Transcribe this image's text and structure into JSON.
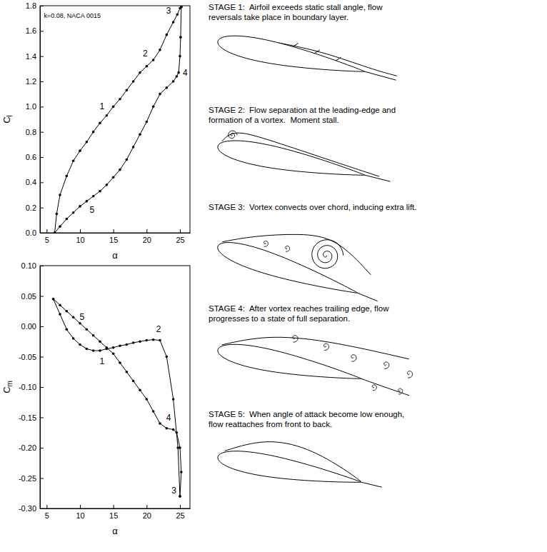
{
  "chart_data": [
    {
      "type": "line",
      "xlabel": "α",
      "ylabel": "Cl",
      "xlim": [
        4,
        26.5
      ],
      "ylim": [
        0,
        1.8
      ],
      "xticks": [
        5,
        10,
        15,
        20,
        25
      ],
      "yticks": [
        {
          "value": 0,
          "label": "0.0"
        },
        0.2,
        0.4,
        0.6,
        0.8,
        {
          "value": 1,
          "label": "1.0"
        },
        1.2,
        1.4,
        1.6,
        1.8
      ],
      "marker": "circle",
      "color": "#000000",
      "annotations": [
        {
          "text": "k=0.08, NACA 0015",
          "x": 4.6,
          "y": 1.72
        },
        {
          "text": "1",
          "x": 13.3,
          "y": 1.0
        },
        {
          "text": "2",
          "x": 19.8,
          "y": 1.42
        },
        {
          "text": "3",
          "x": 23.3,
          "y": 1.76
        },
        {
          "text": "4",
          "x": 25.8,
          "y": 1.27
        },
        {
          "text": "5",
          "x": 11.8,
          "y": 0.18
        }
      ],
      "series": [
        {
          "x": [
            6.2,
            6.5,
            7,
            8,
            9,
            10,
            11,
            12,
            13,
            14,
            15,
            16,
            17,
            18,
            19,
            20,
            21,
            22,
            23,
            24,
            24.6,
            25,
            25.2
          ],
          "values": [
            0.0,
            0.15,
            0.3,
            0.45,
            0.57,
            0.65,
            0.72,
            0.8,
            0.87,
            0.93,
            1.0,
            1.06,
            1.13,
            1.2,
            1.27,
            1.32,
            1.37,
            1.45,
            1.57,
            1.67,
            1.73,
            1.78,
            1.79
          ]
        },
        {
          "x": [
            25.2,
            25.1,
            25,
            24.8,
            24.5,
            24,
            23,
            22,
            21,
            20,
            19,
            18,
            17,
            16,
            15,
            14,
            13,
            12,
            11,
            10,
            9,
            8,
            7,
            6.2
          ],
          "values": [
            1.79,
            1.55,
            1.4,
            1.27,
            1.24,
            1.2,
            1.15,
            1.1,
            1.0,
            0.88,
            0.78,
            0.68,
            0.58,
            0.5,
            0.44,
            0.38,
            0.33,
            0.29,
            0.25,
            0.21,
            0.16,
            0.11,
            0.05,
            0.0
          ]
        }
      ]
    },
    {
      "type": "line",
      "xlabel": "α",
      "ylabel": "Cm",
      "xlim": [
        4,
        26.5
      ],
      "ylim": [
        -0.3,
        0.1
      ],
      "xticks": [
        5,
        10,
        15,
        20,
        25
      ],
      "yticks": [
        {
          "value": -0.3,
          "label": "-0.30"
        },
        -0.25,
        {
          "value": -0.2,
          "label": "-0.20"
        },
        -0.15,
        {
          "value": -0.1,
          "label": "-0.10"
        },
        -0.05,
        {
          "value": 0,
          "label": "0.00"
        },
        0.05,
        {
          "value": 0.1,
          "label": "0.10"
        }
      ],
      "marker": "circle",
      "color": "#000000",
      "annotations": [
        {
          "text": "1",
          "x": 13.3,
          "y": -0.058
        },
        {
          "text": "2",
          "x": 21.8,
          "y": -0.005
        },
        {
          "text": "3",
          "x": 24.1,
          "y": -0.27
        },
        {
          "text": "4",
          "x": 23.3,
          "y": -0.15
        },
        {
          "text": "5",
          "x": 10.3,
          "y": 0.015
        }
      ],
      "series": [
        {
          "x": [
            6,
            7,
            8,
            9,
            10,
            11,
            12,
            13,
            14,
            15,
            16,
            17,
            18,
            19,
            20,
            21,
            22,
            23,
            24,
            24.7,
            25
          ],
          "values": [
            0.045,
            0.02,
            -0.005,
            -0.02,
            -0.03,
            -0.037,
            -0.04,
            -0.04,
            -0.037,
            -0.035,
            -0.032,
            -0.03,
            -0.027,
            -0.025,
            -0.023,
            -0.022,
            -0.023,
            -0.05,
            -0.12,
            -0.2,
            -0.28
          ]
        },
        {
          "x": [
            25,
            25.2,
            25,
            24.5,
            24,
            23,
            22,
            21,
            20,
            19,
            18,
            17,
            16,
            15,
            14,
            13,
            12,
            11,
            10,
            9,
            8,
            7,
            6
          ],
          "values": [
            -0.28,
            -0.24,
            -0.2,
            -0.175,
            -0.17,
            -0.168,
            -0.16,
            -0.14,
            -0.12,
            -0.105,
            -0.09,
            -0.075,
            -0.06,
            -0.045,
            -0.035,
            -0.025,
            -0.015,
            -0.005,
            0.005,
            0.015,
            0.025,
            0.035,
            0.045
          ]
        }
      ]
    }
  ],
  "stages": [
    {
      "label": "STAGE 1:",
      "text": "Airfoil exceeds static stall angle, flow reversals take place in boundary layer."
    },
    {
      "label": "STAGE 2:",
      "text": "Flow separation at the leading-edge and formation of a vortex.  Moment stall."
    },
    {
      "label": "STAGE 3:",
      "text": "Vortex convects over chord, inducing extra lift."
    },
    {
      "label": "STAGE 4:",
      "text": "After vortex reaches trailing edge, flow progresses to a state of full separation."
    },
    {
      "label": "STAGE 5:",
      "text": "When angle of attack become low enough, flow reattaches from front to back."
    }
  ]
}
